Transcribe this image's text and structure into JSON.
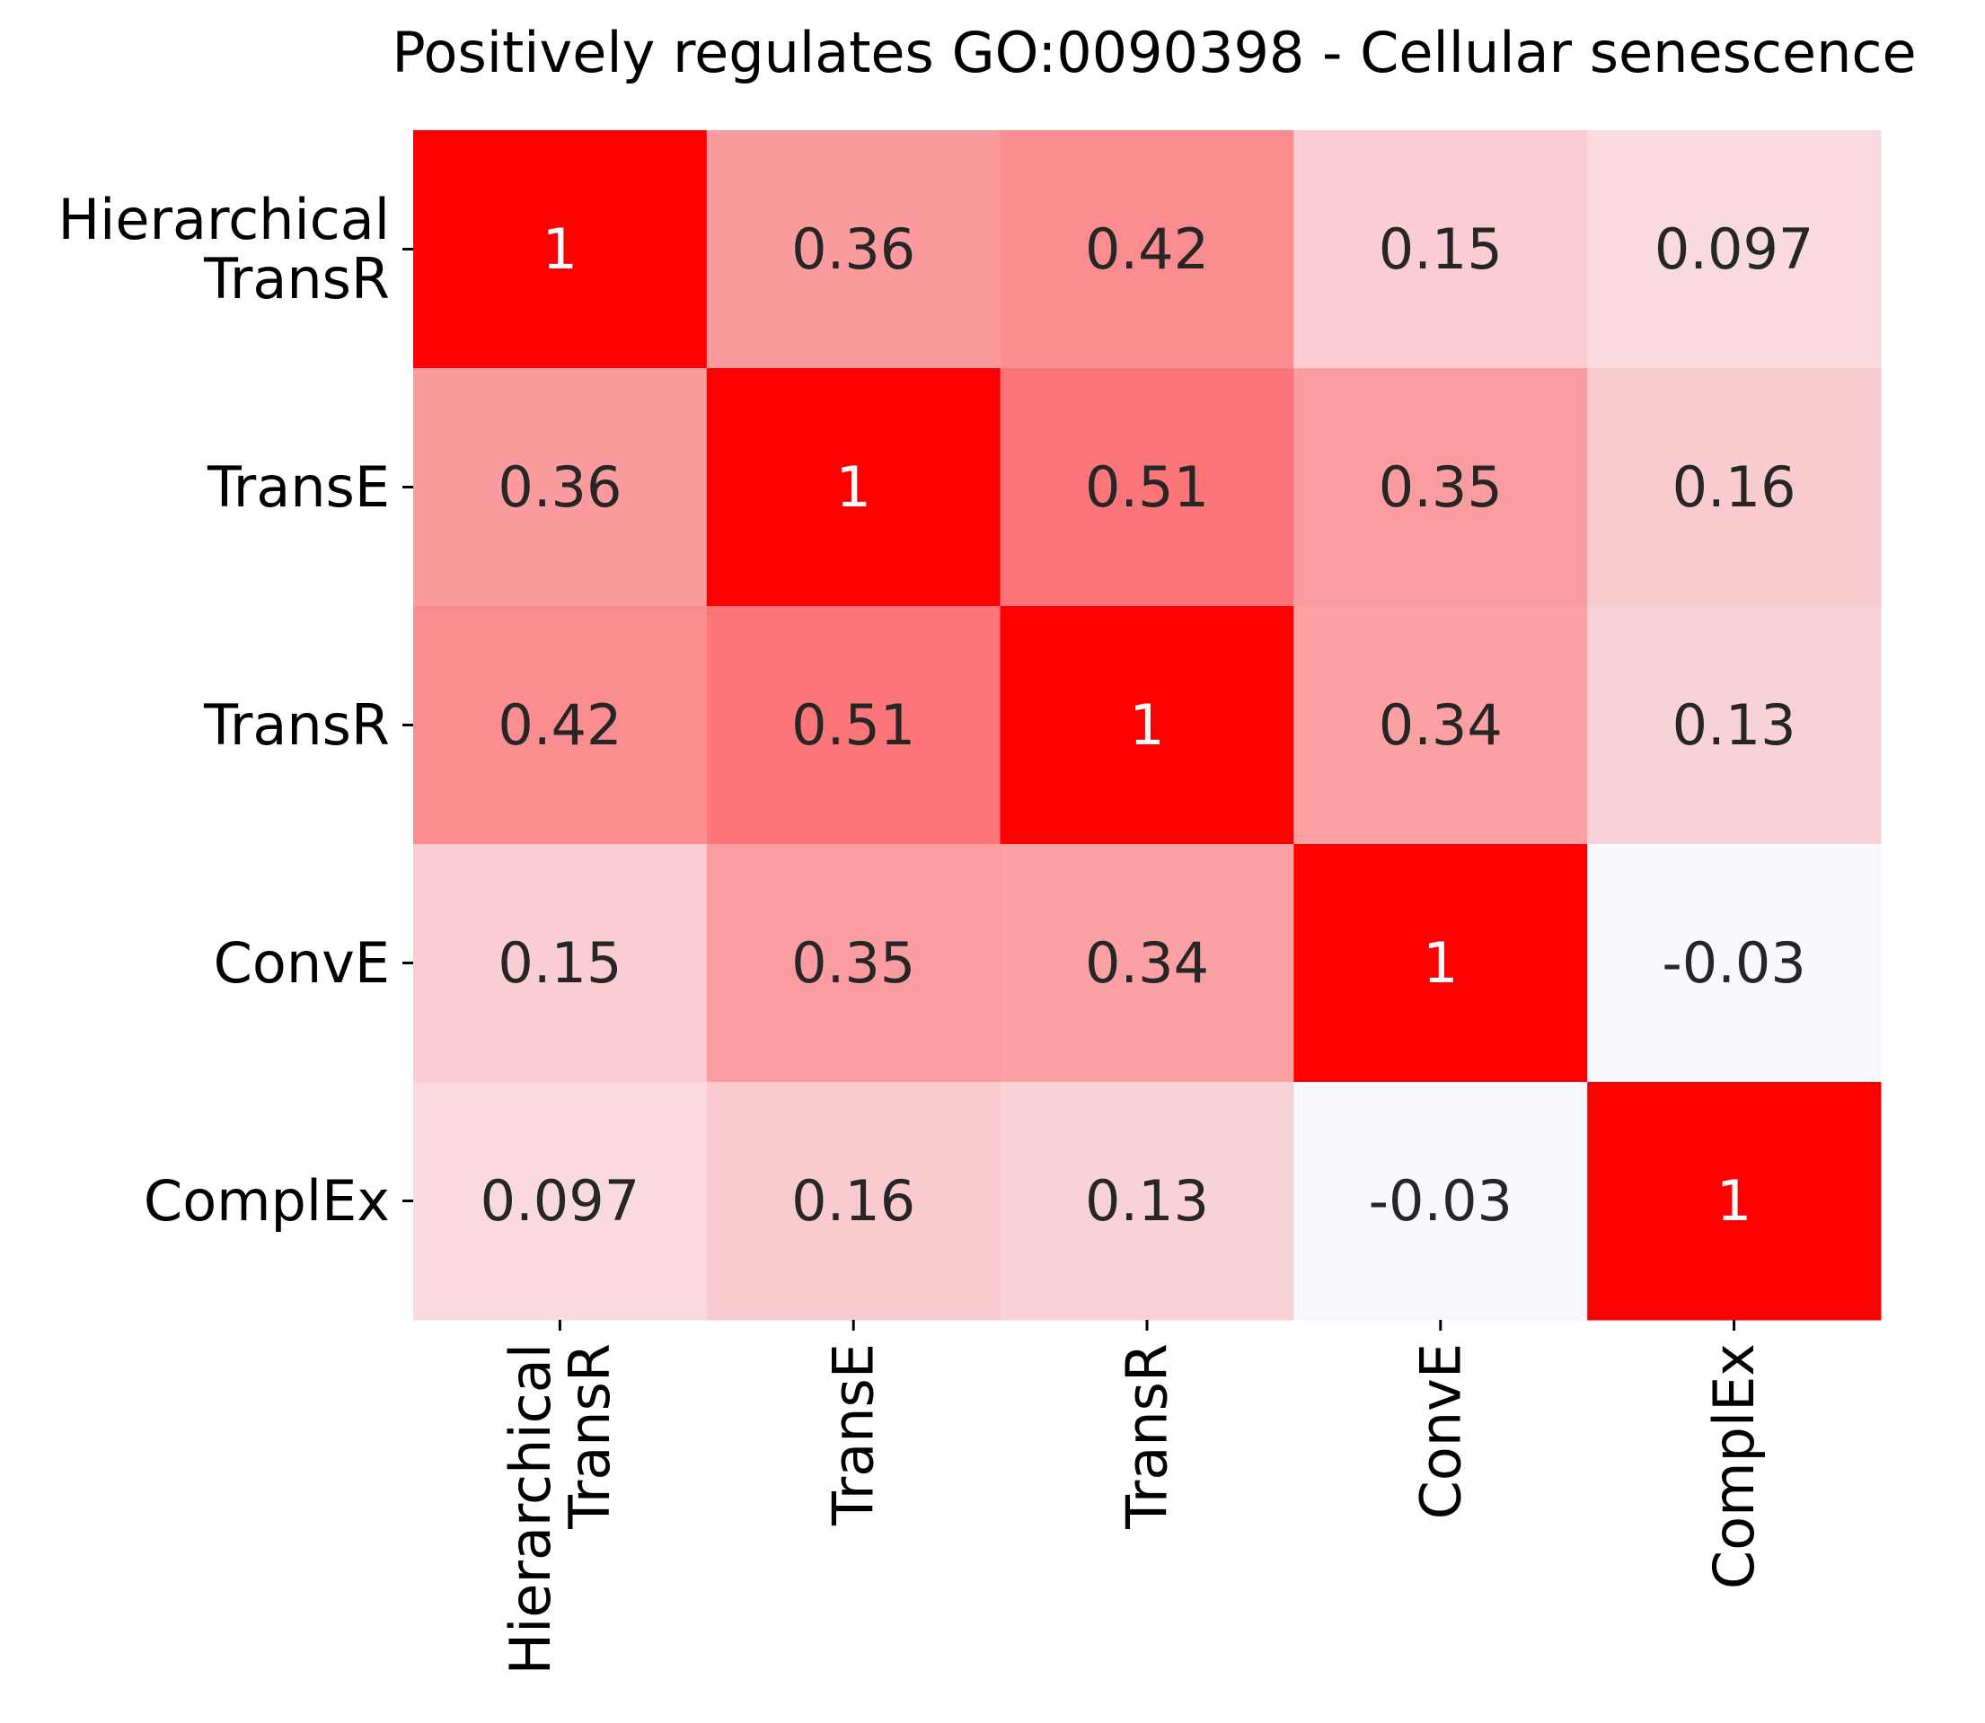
{
  "chart_data": {
    "type": "heatmap",
    "title": "Positively regulates GO:0090398 - Cellular senescence",
    "xlabel": "",
    "ylabel": "",
    "row_labels": [
      [
        "Hierarchical",
        "TransR"
      ],
      [
        "TransE"
      ],
      [
        "TransR"
      ],
      [
        "ConvE"
      ],
      [
        "ComplEx"
      ]
    ],
    "col_labels": [
      [
        "Hierarchical",
        "TransR"
      ],
      [
        "TransE"
      ],
      [
        "TransR"
      ],
      [
        "ConvE"
      ],
      [
        "ComplEx"
      ]
    ],
    "values": [
      [
        1,
        0.36,
        0.42,
        0.15,
        0.097
      ],
      [
        0.36,
        1,
        0.51,
        0.35,
        0.16
      ],
      [
        0.42,
        0.51,
        1,
        0.34,
        0.13
      ],
      [
        0.15,
        0.35,
        0.34,
        1,
        -0.03
      ],
      [
        0.097,
        0.16,
        0.13,
        -0.03,
        1
      ]
    ],
    "value_labels": [
      [
        "1",
        "0.36",
        "0.42",
        "0.15",
        "0.097"
      ],
      [
        "0.36",
        "1",
        "0.51",
        "0.35",
        "0.16"
      ],
      [
        "0.42",
        "0.51",
        "1",
        "0.34",
        "0.13"
      ],
      [
        "0.15",
        "0.35",
        "0.34",
        "1",
        "-0.03"
      ],
      [
        "0.097",
        "0.16",
        "0.13",
        "-0.03",
        "1"
      ]
    ],
    "colorscale": {
      "min_value": -0.03,
      "max_value": 1,
      "min_color": "#f8f9fe",
      "max_color": "#ff0000",
      "dark_text_color": "#262626",
      "light_text_color": "#ffffff"
    },
    "colorbar": false
  }
}
